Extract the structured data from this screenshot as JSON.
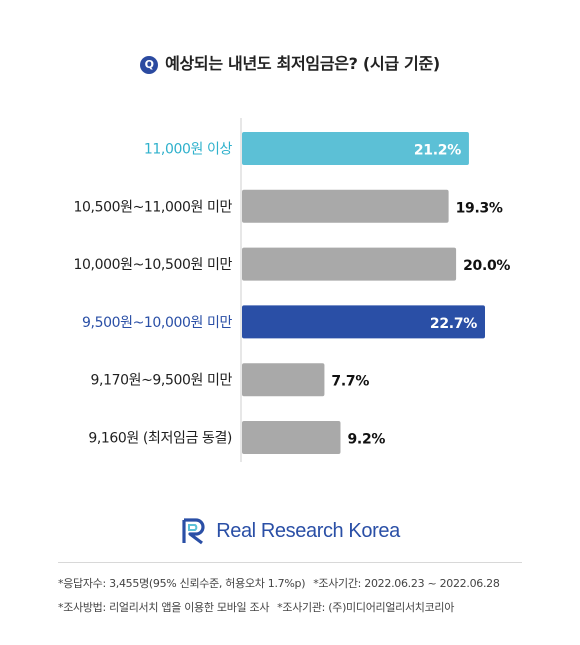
{
  "title": {
    "badge": "Q",
    "text": "예상되는 내년도 최저임금은? (시급 기준)"
  },
  "chart_data": {
    "type": "bar",
    "orientation": "horizontal",
    "title": "예상되는 내년도 최저임금은? (시급 기준)",
    "categories": [
      "11,000원 이상",
      "10,500원~11,000원 미만",
      "10,000원~10,500원 미만",
      "9,500원~10,000원 미만",
      "9,170원~9,500원 미만",
      "9,160원 (최저임금 동결)"
    ],
    "values": [
      21.2,
      19.3,
      20.0,
      22.7,
      7.7,
      9.2
    ],
    "value_labels": [
      "21.2%",
      "19.3%",
      "20.0%",
      "22.7%",
      "7.7%",
      "9.2%"
    ],
    "unit": "%",
    "xlim": [
      0,
      22.7
    ],
    "grid": false,
    "bar_colors": [
      "#5cc0d6",
      "#a9a9a9",
      "#a9a9a9",
      "#2a4fa6",
      "#a9a9a9",
      "#a9a9a9"
    ],
    "label_colors": [
      "#2fb1cc",
      "#1f1f1f",
      "#1f1f1f",
      "#2a4fa6",
      "#1f1f1f",
      "#1f1f1f"
    ],
    "value_inside": [
      true,
      false,
      false,
      true,
      false,
      false
    ]
  },
  "brand": {
    "logo_icon": "rr-monogram-icon",
    "name": "Real Research Korea",
    "color": "#2a4fa6"
  },
  "footnotes": {
    "respondents": "*응답자수: 3,455명(95% 신뢰수준, 허용오차 1.7%p)",
    "period": "*조사기간: 2022.06.23 ~ 2022.06.28",
    "method": "*조사방법: 리얼리서치 앱을 이용한 모바일 조사",
    "organization": "*조사기관: (주)미디어리얼리서치코리아"
  }
}
